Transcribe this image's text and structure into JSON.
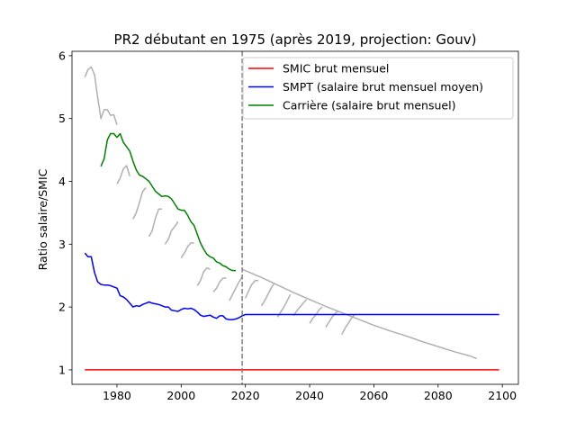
{
  "chart_data": {
    "type": "line",
    "title": "PR2 débutant en 1975  (après 2019, projection: Gouv)",
    "xlabel": "",
    "ylabel": "Ratio salaire/SMIC",
    "xlim": [
      1966,
      2105
    ],
    "ylim": [
      0.77,
      6.07
    ],
    "xticks": [
      1980,
      2000,
      2020,
      2040,
      2060,
      2080,
      2100
    ],
    "yticks": [
      1,
      2,
      3,
      4,
      5,
      6
    ],
    "grid": false,
    "legend_position": "top-right",
    "vline": {
      "x": 2019,
      "color": "#808080",
      "style": "dashed"
    },
    "series": [
      {
        "name": "SMIC brut mensuel",
        "color": "#ff0000",
        "x": [
          1970,
          2099
        ],
        "y": [
          1.0,
          1.0
        ]
      },
      {
        "name": "SMPT (salaire brut mensuel moyen)",
        "color": "#0000ff",
        "x": [
          1970,
          1971,
          1972,
          1973,
          1974,
          1975,
          1976,
          1977,
          1978,
          1979,
          1980,
          1981,
          1982,
          1983,
          1984,
          1985,
          1986,
          1987,
          1988,
          1989,
          1990,
          1991,
          1992,
          1993,
          1994,
          1995,
          1996,
          1997,
          1998,
          1999,
          2000,
          2001,
          2002,
          2003,
          2004,
          2005,
          2006,
          2007,
          2008,
          2009,
          2010,
          2011,
          2012,
          2013,
          2014,
          2015,
          2016,
          2017,
          2018,
          2019,
          2020,
          2030,
          2040,
          2050,
          2060,
          2070,
          2080,
          2090,
          2099
        ],
        "y": [
          2.86,
          2.8,
          2.8,
          2.55,
          2.4,
          2.36,
          2.35,
          2.35,
          2.34,
          2.32,
          2.3,
          2.18,
          2.16,
          2.12,
          2.06,
          2.0,
          2.02,
          2.01,
          2.04,
          2.06,
          2.08,
          2.06,
          2.05,
          2.04,
          2.02,
          2.0,
          2.0,
          1.95,
          1.94,
          1.93,
          1.96,
          1.98,
          1.97,
          1.98,
          1.96,
          1.92,
          1.87,
          1.85,
          1.86,
          1.87,
          1.84,
          1.82,
          1.86,
          1.86,
          1.81,
          1.8,
          1.8,
          1.81,
          1.83,
          1.86,
          1.88,
          1.88,
          1.88,
          1.88,
          1.88,
          1.88,
          1.88,
          1.88,
          1.88
        ]
      },
      {
        "name": "Carrière (salaire brut mensuel)",
        "color": "#008000",
        "x": [
          1975,
          1976,
          1977,
          1978,
          1979,
          1980,
          1981,
          1982,
          1983,
          1984,
          1985,
          1986,
          1987,
          1988,
          1989,
          1990,
          1991,
          1992,
          1993,
          1994,
          1995,
          1996,
          1997,
          1998,
          1999,
          2000,
          2001,
          2002,
          2003,
          2004,
          2005,
          2006,
          2007,
          2008,
          2009,
          2010,
          2011,
          2012,
          2013,
          2014,
          2015,
          2016,
          2017
        ],
        "y": [
          4.24,
          4.36,
          4.66,
          4.76,
          4.76,
          4.7,
          4.76,
          4.62,
          4.55,
          4.48,
          4.32,
          4.18,
          4.1,
          4.08,
          4.04,
          4.0,
          3.92,
          3.84,
          3.8,
          3.76,
          3.77,
          3.76,
          3.72,
          3.64,
          3.56,
          3.54,
          3.54,
          3.46,
          3.36,
          3.3,
          3.16,
          3.02,
          2.92,
          2.84,
          2.8,
          2.78,
          2.72,
          2.7,
          2.66,
          2.64,
          2.6,
          2.58,
          2.58
        ]
      },
      {
        "name": "",
        "color": "#b0b0b0",
        "x": [
          1970,
          1971,
          1972,
          1973,
          1974,
          1975,
          1976,
          1977,
          1978,
          1979,
          1980
        ],
        "y": [
          5.66,
          5.78,
          5.82,
          5.7,
          5.34,
          5.0,
          5.14,
          5.14,
          5.05,
          5.06,
          4.9
        ]
      },
      {
        "name": "",
        "color": "#b0b0b0",
        "x": [
          1980,
          1981,
          1982,
          1983,
          1984
        ],
        "y": [
          3.96,
          4.05,
          4.2,
          4.25,
          4.08
        ]
      },
      {
        "name": "",
        "color": "#b0b0b0",
        "x": [
          1985,
          1986,
          1987,
          1988,
          1989
        ],
        "y": [
          3.4,
          3.5,
          3.66,
          3.84,
          3.9
        ]
      },
      {
        "name": "",
        "color": "#b0b0b0",
        "x": [
          1990,
          1991,
          1992,
          1993,
          1994
        ],
        "y": [
          3.12,
          3.22,
          3.42,
          3.56,
          3.56
        ]
      },
      {
        "name": "",
        "color": "#b0b0b0",
        "x": [
          1995,
          1996,
          1997,
          1998,
          1999
        ],
        "y": [
          3.0,
          3.08,
          3.22,
          3.28,
          3.36
        ]
      },
      {
        "name": "",
        "color": "#b0b0b0",
        "x": [
          2000,
          2001,
          2002,
          2003,
          2004
        ],
        "y": [
          2.78,
          2.86,
          2.96,
          3.02,
          3.02
        ]
      },
      {
        "name": "",
        "color": "#b0b0b0",
        "x": [
          2005,
          2006,
          2007,
          2008,
          2009
        ],
        "y": [
          2.34,
          2.42,
          2.56,
          2.62,
          2.6
        ]
      },
      {
        "name": "",
        "color": "#b0b0b0",
        "x": [
          2010,
          2011,
          2012,
          2013,
          2014
        ],
        "y": [
          2.24,
          2.3,
          2.4,
          2.46,
          2.46
        ]
      },
      {
        "name": "",
        "color": "#b0b0b0",
        "x": [
          2015,
          2016,
          2017,
          2018,
          2019
        ],
        "y": [
          2.1,
          2.2,
          2.3,
          2.4,
          2.48
        ]
      },
      {
        "name": "",
        "color": "#b0b0b0",
        "x": [
          2020,
          2021,
          2022,
          2023,
          2024
        ],
        "y": [
          2.14,
          2.26,
          2.36,
          2.42,
          2.42
        ]
      },
      {
        "name": "",
        "color": "#b0b0b0",
        "x": [
          2025,
          2026,
          2027,
          2028,
          2029
        ],
        "y": [
          2.02,
          2.1,
          2.2,
          2.3,
          2.38
        ]
      },
      {
        "name": "",
        "color": "#b0b0b0",
        "x": [
          2030,
          2031,
          2032,
          2033,
          2034
        ],
        "y": [
          1.84,
          1.92,
          2.0,
          2.1,
          2.2
        ]
      },
      {
        "name": "",
        "color": "#b0b0b0",
        "x": [
          2035,
          2036,
          2037,
          2038,
          2039
        ],
        "y": [
          1.86,
          1.94,
          2.0,
          2.06,
          2.12
        ]
      },
      {
        "name": "",
        "color": "#b0b0b0",
        "x": [
          2040,
          2041,
          2042,
          2043,
          2044
        ],
        "y": [
          1.74,
          1.82,
          1.88,
          1.96,
          2.0
        ]
      },
      {
        "name": "",
        "color": "#b0b0b0",
        "x": [
          2045,
          2046,
          2047,
          2048,
          2049
        ],
        "y": [
          1.68,
          1.76,
          1.84,
          1.9,
          1.94
        ]
      },
      {
        "name": "",
        "color": "#b0b0b0",
        "x": [
          2050,
          2051,
          2052,
          2053,
          2054
        ],
        "y": [
          1.56,
          1.66,
          1.74,
          1.82,
          1.88
        ]
      },
      {
        "name": "",
        "color": "#b0b0b0",
        "x": [
          2019,
          2025,
          2030,
          2035,
          2040,
          2045,
          2050,
          2055,
          2060,
          2065,
          2070,
          2075,
          2080,
          2085,
          2090,
          2092
        ],
        "y": [
          2.6,
          2.47,
          2.35,
          2.23,
          2.12,
          2.01,
          1.91,
          1.81,
          1.71,
          1.62,
          1.54,
          1.45,
          1.37,
          1.29,
          1.22,
          1.18
        ]
      }
    ]
  }
}
